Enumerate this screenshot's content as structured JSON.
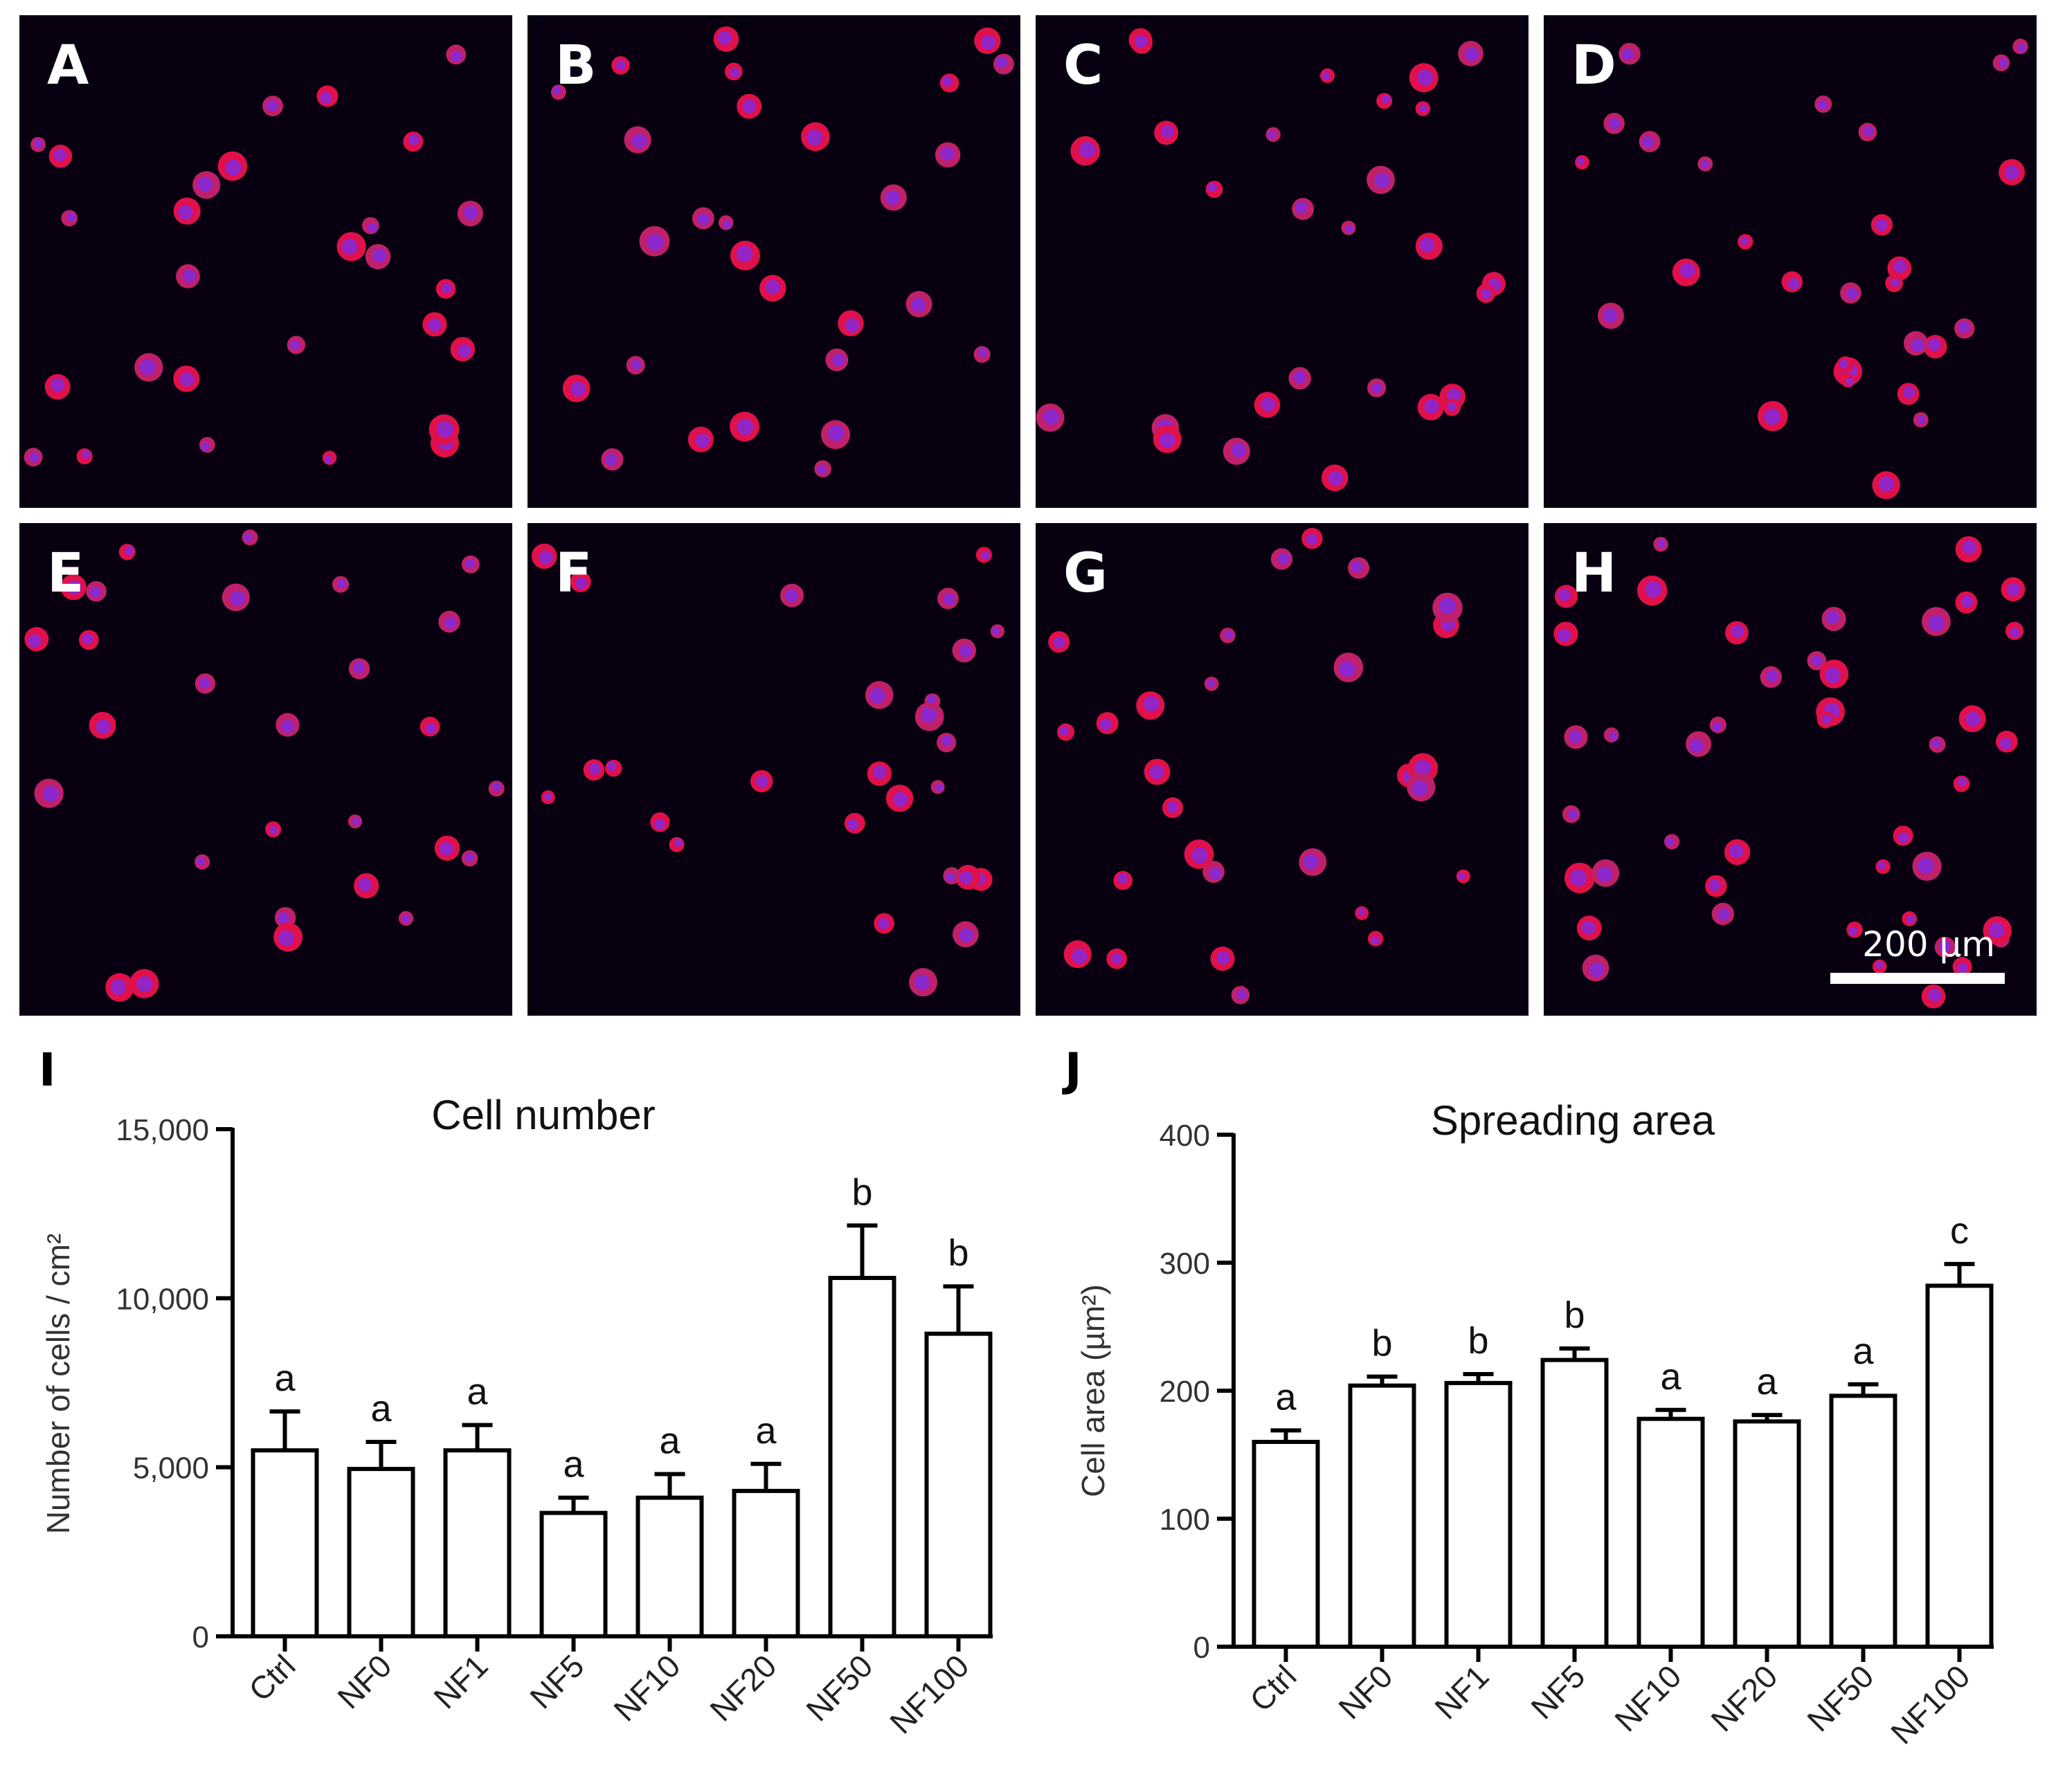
{
  "panels": {
    "labels": [
      "A",
      "B",
      "C",
      "D",
      "E",
      "F",
      "G",
      "H"
    ],
    "scale_bar": "200 µm"
  },
  "chart_data": [
    {
      "type": "bar",
      "panel_label": "I",
      "title": "Cell number",
      "ylabel": "Number of cells / cm²",
      "xlabel": "",
      "categories": [
        "Ctrl",
        "NF0",
        "NF1",
        "NF5",
        "NF10",
        "NF20",
        "NF50",
        "NF100"
      ],
      "values": [
        5500,
        4950,
        5500,
        3650,
        4100,
        4300,
        10600,
        8950
      ],
      "errors": [
        1150,
        800,
        750,
        450,
        700,
        800,
        1550,
        1400
      ],
      "annotations": [
        "a",
        "a",
        "a",
        "a",
        "a",
        "a",
        "b",
        "b"
      ],
      "ylim": [
        0,
        15000
      ],
      "yticks": [
        0,
        5000,
        10000,
        15000
      ],
      "ytick_labels": [
        "0",
        "5,000",
        "10,000",
        "15,000"
      ],
      "grid": false,
      "colors": {
        "bar_fill": "#ffffff",
        "bar_edge": "#000000"
      }
    },
    {
      "type": "bar",
      "panel_label": "J",
      "title": "Spreading area",
      "ylabel": "Cell area (µm²)",
      "xlabel": "",
      "categories": [
        "Ctrl",
        "NF0",
        "NF1",
        "NF5",
        "NF10",
        "NF20",
        "NF50",
        "NF100"
      ],
      "values": [
        160,
        204,
        206,
        224,
        178,
        176,
        196,
        282
      ],
      "errors": [
        9,
        7,
        7,
        9,
        7,
        5,
        9,
        17
      ],
      "annotations": [
        "a",
        "b",
        "b",
        "b",
        "a",
        "a",
        "a",
        "c"
      ],
      "ylim": [
        0,
        400
      ],
      "yticks": [
        0,
        100,
        200,
        300,
        400
      ],
      "ytick_labels": [
        "0",
        "100",
        "200",
        "300",
        "400"
      ],
      "grid": false,
      "colors": {
        "bar_fill": "#ffffff",
        "bar_edge": "#000000"
      }
    }
  ]
}
